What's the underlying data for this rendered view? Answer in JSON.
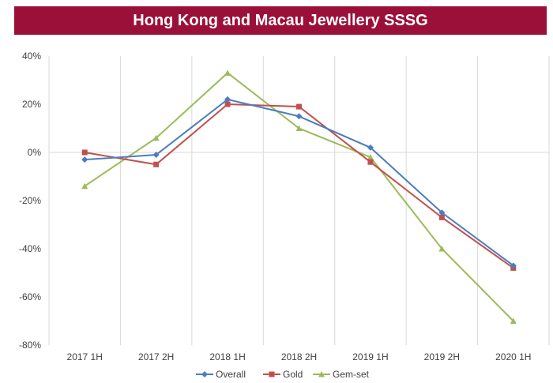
{
  "title": "Hong Kong and Macau Jewellery SSSG",
  "chart_data": {
    "type": "line",
    "title": "Hong Kong and Macau Jewellery SSSG",
    "xlabel": "",
    "ylabel": "",
    "categories": [
      "2017 1H",
      "2017 2H",
      "2018 1H",
      "2018 2H",
      "2019 1H",
      "2019 2H",
      "2020 1H"
    ],
    "y_tick_labels": [
      "40%",
      "20%",
      "0%",
      "-20%",
      "-40%",
      "-60%",
      "-80%"
    ],
    "ylim": [
      -80,
      40
    ],
    "y_unit": "%",
    "grid": "vertical",
    "legend_position": "bottom",
    "series": [
      {
        "name": "Overall",
        "color": "#4a7ebf",
        "marker": "diamond",
        "values": [
          -3,
          -1,
          22,
          15,
          2,
          -25,
          -47
        ]
      },
      {
        "name": "Gold",
        "color": "#c0504d",
        "marker": "square",
        "values": [
          0,
          -5,
          20,
          19,
          -4,
          -27,
          -48
        ]
      },
      {
        "name": "Gem-set",
        "color": "#9bbb59",
        "marker": "triangle",
        "values": [
          -14,
          6,
          33,
          10,
          -2,
          -40,
          -70
        ]
      }
    ]
  }
}
